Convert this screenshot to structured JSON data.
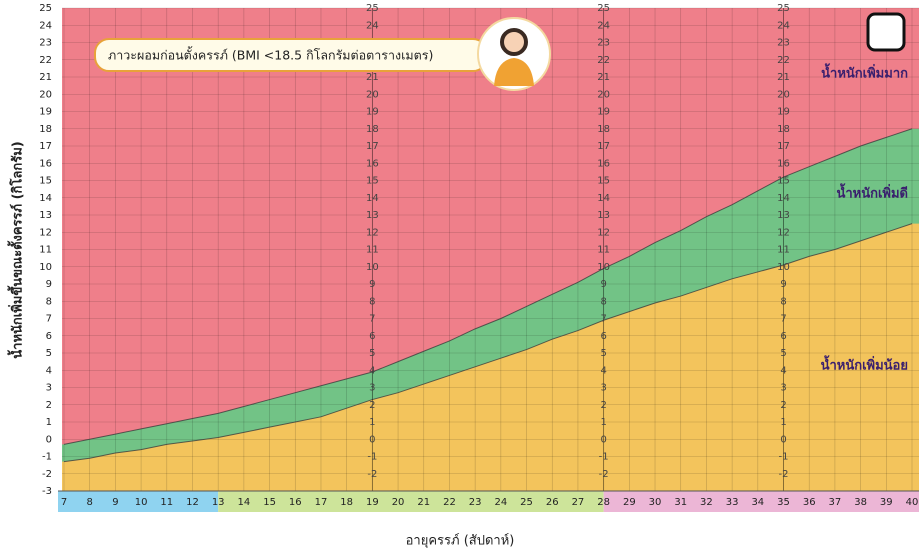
{
  "chart_data": {
    "type": "area",
    "title": "ภาวะผอมก่อนตั้งครรภ์ (BMI <18.5 กิโลกรัมต่อตารางเมตร)",
    "xlabel": "อายุครรภ์ (สัปดาห์)",
    "ylabel": "น้ำหนักเพิ่มขึ้นขณะตั้งครรภ์ (กิโลกรัม)",
    "x": [
      7,
      8,
      9,
      10,
      11,
      12,
      13,
      14,
      15,
      16,
      17,
      18,
      19,
      20,
      21,
      22,
      23,
      24,
      25,
      26,
      27,
      28,
      29,
      30,
      31,
      32,
      33,
      34,
      35,
      36,
      37,
      38,
      39,
      40
    ],
    "series": [
      {
        "name": "น้ำหนักเพิ่มน้อย",
        "color": "#f3c45c",
        "values": [
          -1.3,
          -1.1,
          -0.8,
          -0.6,
          -0.3,
          -0.1,
          0.1,
          0.4,
          0.7,
          1.0,
          1.3,
          1.8,
          2.3,
          2.7,
          3.2,
          3.7,
          4.2,
          4.7,
          5.2,
          5.8,
          6.3,
          6.9,
          7.4,
          7.9,
          8.3,
          8.8,
          9.3,
          9.7,
          10.1,
          10.6,
          11.0,
          11.5,
          12.0,
          12.5
        ]
      },
      {
        "name": "น้ำหนักเพิ่มดี",
        "color": "#72c386",
        "values": [
          -0.3,
          0.0,
          0.3,
          0.6,
          0.9,
          1.2,
          1.5,
          1.9,
          2.3,
          2.7,
          3.1,
          3.5,
          3.9,
          4.5,
          5.1,
          5.7,
          6.4,
          7.0,
          7.7,
          8.4,
          9.1,
          9.9,
          10.6,
          11.4,
          12.1,
          12.9,
          13.6,
          14.4,
          15.2,
          15.8,
          16.4,
          17.0,
          17.5,
          18.0
        ]
      }
    ],
    "above": {
      "name": "น้ำหนักเพิ่มมาก",
      "color": "#ef7f8a"
    },
    "xlim": [
      7,
      40
    ],
    "ylim": [
      -3,
      25
    ],
    "xticks": [
      7,
      8,
      9,
      10,
      11,
      12,
      13,
      14,
      15,
      16,
      17,
      18,
      19,
      20,
      21,
      22,
      23,
      24,
      25,
      26,
      27,
      28,
      29,
      30,
      31,
      32,
      33,
      34,
      35,
      36,
      37,
      38,
      39,
      40
    ],
    "yticks": [
      -3,
      -2,
      -1,
      0,
      1,
      2,
      3,
      4,
      5,
      6,
      7,
      8,
      9,
      10,
      11,
      12,
      13,
      14,
      15,
      16,
      17,
      18,
      19,
      20,
      21,
      22,
      23,
      24,
      25
    ],
    "inner_tick_columns": [
      19,
      28,
      35
    ],
    "x_bands": [
      {
        "from": 7,
        "to": 13,
        "color": "#8fd3f0"
      },
      {
        "from": 13,
        "to": 28,
        "color": "#cde49a"
      },
      {
        "from": 28,
        "to": 40,
        "color": "#ecb6d6"
      }
    ],
    "grid": true
  }
}
